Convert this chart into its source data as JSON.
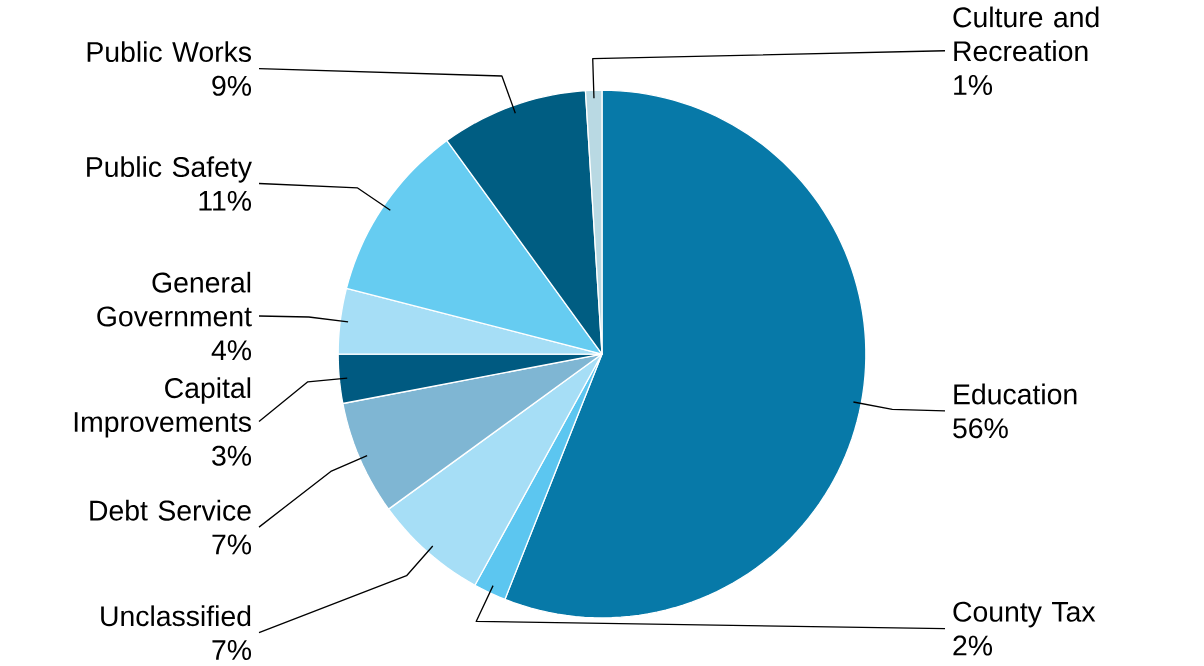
{
  "chart_data": {
    "type": "pie",
    "categories": [
      "Education",
      "County Tax",
      "Unclassified",
      "Debt Service",
      "Capital Improvements",
      "General Government",
      "Public Safety",
      "Public Works",
      "Culture and Recreation"
    ],
    "values": [
      56,
      2,
      7,
      7,
      3,
      4,
      11,
      9,
      1
    ],
    "colors": [
      "#0779a8",
      "#5cc6f0",
      "#a6def6",
      "#7fb6d3",
      "#005a81",
      "#a6def6",
      "#66ccf1",
      "#005d82",
      "#b9d9e3"
    ],
    "value_labels": [
      "56%",
      "2%",
      "7%",
      "7%",
      "3%",
      "4%",
      "11%",
      "9%",
      "1%"
    ]
  }
}
